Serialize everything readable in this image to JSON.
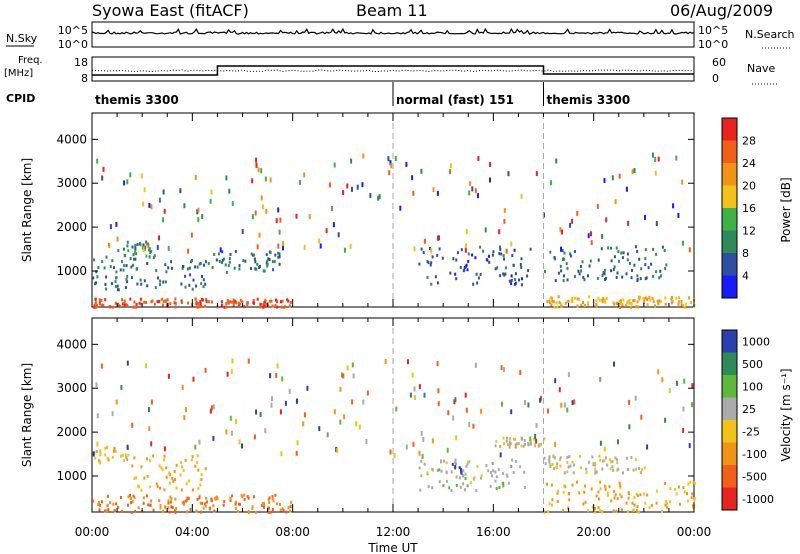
{
  "header": {
    "title": "Syowa East (fitACF)",
    "beam": "Beam 11",
    "date": "06/Aug/2009"
  },
  "sky_panel": {
    "left_label": "N.Sky",
    "right_label": "N.Search",
    "ytick_top": "10^5",
    "ytick_bottom": "10^0"
  },
  "freq_panel": {
    "left_label_line1": "Freq.",
    "left_label_line2": "[MHz]",
    "ytick_left_top": "18",
    "ytick_left_bottom": "8",
    "ytick_right_top": "60",
    "ytick_right_bottom": "0",
    "right_label": "Nave"
  },
  "cpid": {
    "label": "CPID",
    "segments": [
      {
        "start_hour": 0,
        "end_hour": 12,
        "name": "themis 3300"
      },
      {
        "start_hour": 12,
        "end_hour": 18,
        "name": "normal (fast) 151"
      },
      {
        "start_hour": 18,
        "end_hour": 24,
        "name": "themis 3300"
      }
    ]
  },
  "x_axis": {
    "label": "Time UT",
    "ticks": [
      "00:00",
      "04:00",
      "08:00",
      "12:00",
      "16:00",
      "20:00",
      "00:00"
    ],
    "range_hours": [
      0,
      24
    ]
  },
  "power_panel": {
    "ylabel": "Slant Range [km]",
    "yticks": [
      "1000",
      "2000",
      "3000",
      "4000"
    ],
    "colorbar_label": "Power [dB]",
    "colorbar_ticks": [
      "4",
      "8",
      "12",
      "16",
      "20",
      "24",
      "28"
    ],
    "colors": [
      "#1a1aff",
      "#2b4fa3",
      "#2e8b57",
      "#3db347",
      "#f2c218",
      "#f29318",
      "#f25f18",
      "#e8231f"
    ]
  },
  "velocity_panel": {
    "ylabel": "Slant Range [km]",
    "yticks": [
      "1000",
      "2000",
      "3000",
      "4000"
    ],
    "colorbar_label": "Velocity [m s⁻¹]",
    "colorbar_ticks": [
      "1000",
      "500",
      "100",
      "25",
      "-25",
      "-100",
      "-500",
      "-1000"
    ],
    "colors": [
      "#2b3fb0",
      "#2e8b57",
      "#5db83c",
      "#aaaaaa",
      "#f2c218",
      "#f29318",
      "#f25f18",
      "#e8231f"
    ]
  },
  "chart_data": [
    {
      "type": "heatmap",
      "title": "Power [dB]",
      "xlabel": "Time UT",
      "ylabel": "Slant Range [km]",
      "xlim": [
        0,
        24
      ],
      "ylim": [
        180,
        4600
      ],
      "clim": [
        0,
        32
      ],
      "cells": [
        {
          "t": [
            0,
            8
          ],
          "r": [
            200,
            400
          ],
          "v": 27
        },
        {
          "t": [
            0.5,
            2.5
          ],
          "r": [
            1300,
            1700
          ],
          "v": 10
        },
        {
          "t": [
            0,
            4.5
          ],
          "r": [
            600,
            1300
          ],
          "v": 8
        },
        {
          "t": [
            4.5,
            7.5
          ],
          "r": [
            1000,
            1500
          ],
          "v": 8
        },
        {
          "t": [
            13,
            17.5
          ],
          "r": [
            700,
            1600
          ],
          "v": 6
        },
        {
          "t": [
            18,
            23
          ],
          "r": [
            800,
            1600
          ],
          "v": 8
        },
        {
          "t": [
            18,
            24
          ],
          "r": [
            200,
            450
          ],
          "v": 20
        }
      ]
    },
    {
      "type": "heatmap",
      "title": "Velocity [m s⁻¹]",
      "xlabel": "Time UT",
      "ylabel": "Slant Range [km]",
      "xlim": [
        0,
        24
      ],
      "ylim": [
        180,
        4600
      ],
      "clim": [
        -1000,
        1000
      ],
      "cells": [
        {
          "t": [
            0,
            8
          ],
          "r": [
            200,
            600
          ],
          "v": -500
        },
        {
          "t": [
            1.5,
            4.5
          ],
          "r": [
            700,
            1500
          ],
          "v": -300
        },
        {
          "t": [
            0,
            1.5
          ],
          "r": [
            1300,
            1700
          ],
          "v": -150
        },
        {
          "t": [
            13,
            17.5
          ],
          "r": [
            700,
            1400
          ],
          "v": 150
        },
        {
          "t": [
            14.3,
            14.7
          ],
          "r": [
            1100,
            1300
          ],
          "v": 1000
        },
        {
          "t": [
            16,
            18
          ],
          "r": [
            1700,
            1900
          ],
          "v": 0
        },
        {
          "t": [
            18,
            22
          ],
          "r": [
            1100,
            1500
          ],
          "v": 0
        },
        {
          "t": [
            18,
            24
          ],
          "r": [
            200,
            900
          ],
          "v": -300
        }
      ]
    }
  ]
}
